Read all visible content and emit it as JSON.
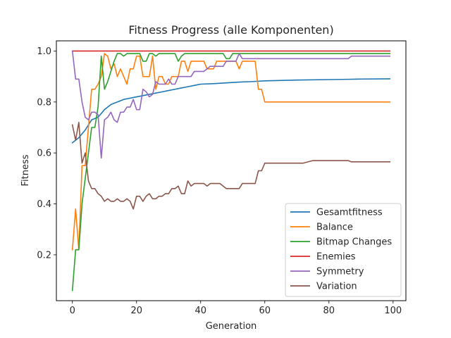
{
  "chart_data": {
    "type": "line",
    "title": "Fitness Progress (alle Komponenten)",
    "xlabel": "Generation",
    "ylabel": "Fitness",
    "xlim": [
      -5,
      104
    ],
    "ylim": [
      0.02,
      1.04
    ],
    "xticks": [
      0,
      20,
      40,
      60,
      80,
      100
    ],
    "yticks": [
      0.2,
      0.4,
      0.6,
      0.8,
      1.0
    ],
    "xtick_labels": [
      "0",
      "20",
      "40",
      "60",
      "80",
      "100"
    ],
    "ytick_labels": [
      "0.2",
      "0.4",
      "0.6",
      "0.8",
      "1.0"
    ],
    "grid": false,
    "legend_position": "lower-right",
    "series": [
      {
        "name": "Gesamtfitness",
        "color": "#1f77b4",
        "x": [
          0,
          2,
          4,
          6,
          8,
          10,
          12,
          14,
          16,
          18,
          20,
          22,
          24,
          26,
          28,
          30,
          32,
          34,
          36,
          38,
          40,
          44,
          48,
          52,
          56,
          60,
          70,
          80,
          86,
          90,
          99
        ],
        "y": [
          0.64,
          0.66,
          0.69,
          0.73,
          0.74,
          0.77,
          0.79,
          0.8,
          0.81,
          0.815,
          0.82,
          0.825,
          0.83,
          0.835,
          0.84,
          0.845,
          0.85,
          0.855,
          0.86,
          0.865,
          0.87,
          0.872,
          0.875,
          0.878,
          0.88,
          0.883,
          0.886,
          0.888,
          0.889,
          0.89,
          0.891
        ]
      },
      {
        "name": "Balance",
        "color": "#ff7f0e",
        "x": [
          0,
          1,
          2,
          3,
          4,
          5,
          6,
          7,
          8,
          9,
          10,
          11,
          12,
          13,
          14,
          15,
          16,
          17,
          18,
          19,
          20,
          21,
          22,
          23,
          24,
          25,
          26,
          27,
          28,
          29,
          30,
          31,
          32,
          33,
          34,
          35,
          36,
          37,
          38,
          39,
          40,
          41,
          42,
          43,
          44,
          45,
          46,
          47,
          48,
          49,
          50,
          51,
          52,
          53,
          54,
          55,
          56,
          57,
          58,
          59,
          60,
          70,
          80,
          90,
          99
        ],
        "y": [
          0.22,
          0.38,
          0.22,
          0.55,
          0.55,
          0.7,
          0.85,
          0.85,
          0.87,
          0.9,
          0.99,
          0.98,
          0.93,
          0.95,
          0.9,
          0.93,
          0.9,
          0.87,
          0.93,
          0.93,
          0.98,
          0.98,
          0.9,
          0.9,
          0.9,
          0.98,
          0.85,
          0.9,
          0.9,
          0.87,
          0.87,
          0.9,
          0.9,
          0.9,
          0.96,
          0.96,
          0.92,
          0.96,
          0.96,
          0.96,
          0.96,
          0.96,
          0.93,
          0.93,
          0.93,
          0.96,
          0.96,
          0.96,
          0.96,
          0.96,
          0.96,
          0.96,
          0.93,
          0.96,
          0.96,
          0.96,
          0.96,
          0.96,
          0.85,
          0.85,
          0.8,
          0.8,
          0.8,
          0.8,
          0.8
        ]
      },
      {
        "name": "Bitmap Changes",
        "color": "#2ca02c",
        "x": [
          0,
          1,
          2,
          3,
          4,
          5,
          6,
          7,
          8,
          9,
          10,
          11,
          12,
          13,
          14,
          15,
          16,
          17,
          18,
          19,
          20,
          21,
          22,
          23,
          24,
          25,
          26,
          27,
          28,
          29,
          30,
          31,
          32,
          33,
          34,
          35,
          36,
          37,
          38,
          39,
          40,
          41,
          42,
          43,
          44,
          45,
          46,
          47,
          48,
          49,
          50,
          60,
          70,
          80,
          90,
          99
        ],
        "y": [
          0.06,
          0.22,
          0.22,
          0.4,
          0.5,
          0.6,
          0.7,
          0.7,
          0.78,
          0.98,
          0.85,
          0.88,
          0.92,
          0.96,
          0.99,
          0.99,
          0.98,
          0.99,
          0.99,
          0.99,
          0.99,
          0.99,
          0.96,
          0.96,
          0.99,
          0.99,
          0.98,
          0.99,
          0.99,
          0.99,
          0.99,
          0.99,
          0.99,
          0.96,
          0.98,
          0.99,
          0.99,
          0.99,
          0.99,
          0.99,
          0.99,
          0.99,
          0.99,
          0.99,
          0.99,
          0.99,
          0.99,
          0.99,
          0.97,
          0.97,
          0.99,
          0.99,
          0.99,
          0.99,
          0.99,
          0.99
        ]
      },
      {
        "name": "Enemies",
        "color": "#d62728",
        "x": [
          0,
          99
        ],
        "y": [
          1.0,
          1.0
        ]
      },
      {
        "name": "Symmetry",
        "color": "#9467bd",
        "x": [
          0,
          1,
          2,
          3,
          4,
          5,
          6,
          7,
          8,
          9,
          10,
          11,
          12,
          13,
          14,
          15,
          16,
          17,
          18,
          19,
          20,
          21,
          22,
          23,
          24,
          25,
          26,
          27,
          28,
          29,
          30,
          31,
          32,
          33,
          34,
          35,
          36,
          37,
          38,
          39,
          40,
          41,
          42,
          43,
          44,
          45,
          46,
          47,
          48,
          49,
          50,
          51,
          52,
          53,
          54,
          60,
          70,
          80,
          86,
          87,
          99
        ],
        "y": [
          1.0,
          0.89,
          0.89,
          0.8,
          0.74,
          0.73,
          0.76,
          0.76,
          0.75,
          0.58,
          0.73,
          0.74,
          0.76,
          0.73,
          0.72,
          0.76,
          0.76,
          0.78,
          0.78,
          0.81,
          0.77,
          0.77,
          0.85,
          0.84,
          0.82,
          0.83,
          0.88,
          0.87,
          0.87,
          0.87,
          0.89,
          0.87,
          0.87,
          0.9,
          0.9,
          0.9,
          0.9,
          0.9,
          0.92,
          0.92,
          0.92,
          0.92,
          0.93,
          0.94,
          0.94,
          0.94,
          0.94,
          0.94,
          0.96,
          0.96,
          0.96,
          0.96,
          0.99,
          0.97,
          0.97,
          0.97,
          0.97,
          0.97,
          0.97,
          0.98,
          0.98
        ]
      },
      {
        "name": "Variation",
        "color": "#8c564b",
        "x": [
          0,
          1,
          2,
          3,
          4,
          5,
          6,
          7,
          8,
          9,
          10,
          11,
          12,
          13,
          14,
          15,
          16,
          17,
          18,
          19,
          20,
          21,
          22,
          23,
          24,
          25,
          26,
          27,
          28,
          29,
          30,
          31,
          32,
          33,
          34,
          35,
          36,
          37,
          38,
          39,
          40,
          41,
          42,
          43,
          44,
          45,
          46,
          47,
          48,
          49,
          50,
          51,
          52,
          53,
          54,
          55,
          56,
          57,
          58,
          59,
          60,
          65,
          70,
          72,
          75,
          77,
          80,
          85,
          86,
          87,
          90,
          99
        ],
        "y": [
          0.71,
          0.65,
          0.72,
          0.56,
          0.6,
          0.49,
          0.46,
          0.46,
          0.44,
          0.43,
          0.41,
          0.42,
          0.41,
          0.41,
          0.42,
          0.41,
          0.41,
          0.42,
          0.41,
          0.38,
          0.43,
          0.43,
          0.41,
          0.43,
          0.44,
          0.42,
          0.42,
          0.43,
          0.43,
          0.44,
          0.44,
          0.46,
          0.46,
          0.47,
          0.44,
          0.44,
          0.49,
          0.47,
          0.48,
          0.48,
          0.48,
          0.48,
          0.47,
          0.48,
          0.48,
          0.48,
          0.48,
          0.47,
          0.46,
          0.46,
          0.46,
          0.46,
          0.46,
          0.48,
          0.48,
          0.48,
          0.48,
          0.48,
          0.53,
          0.53,
          0.56,
          0.56,
          0.56,
          0.56,
          0.57,
          0.57,
          0.57,
          0.57,
          0.57,
          0.565,
          0.565,
          0.565
        ]
      }
    ]
  }
}
